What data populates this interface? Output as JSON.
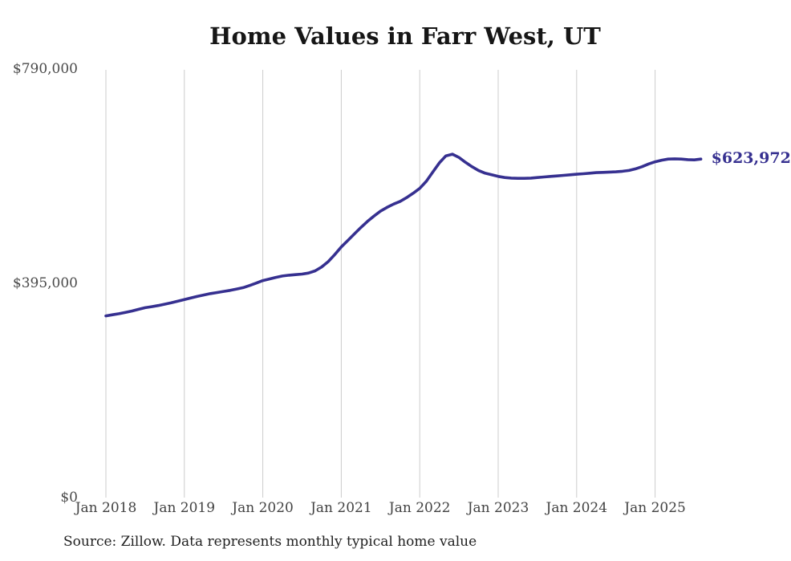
{
  "source": "Source: Zillow. Data represents monthly typical home value",
  "chart_data": {
    "type": "line",
    "title": "Home Values in Farr West, UT",
    "xlabel": "",
    "ylabel": "",
    "x_unit": "month",
    "x_first": "2018-01",
    "x_last": "2025-08",
    "x_tick_labels": [
      "Jan 2018",
      "Jan 2019",
      "Jan 2020",
      "Jan 2021",
      "Jan 2022",
      "Jan 2023",
      "Jan 2024",
      "Jan 2025"
    ],
    "y_ticks": [
      {
        "label": "$0",
        "value": 0
      },
      {
        "label": "$395,000",
        "value": 395000
      },
      {
        "label": "$790,000",
        "value": 790000
      }
    ],
    "ylim": [
      0,
      790000
    ],
    "grid": "vertical-only",
    "grid_color": "#cccccc",
    "legend": "none",
    "end_label": "$623,972",
    "series": [
      {
        "name": "Typical home value",
        "color": "#363090",
        "values": [
          335000,
          337000,
          339000,
          341500,
          344000,
          347000,
          350000,
          352000,
          354000,
          356500,
          359000,
          362000,
          365000,
          368000,
          371000,
          373500,
          376000,
          378000,
          380000,
          382000,
          384500,
          387000,
          391000,
          395500,
          400000,
          403000,
          406000,
          408500,
          410000,
          411000,
          412000,
          414000,
          418000,
          425000,
          435000,
          448000,
          462000,
          474000,
          486000,
          498000,
          509000,
          519000,
          528000,
          535000,
          541000,
          546000,
          553000,
          561000,
          570000,
          583000,
          600000,
          617000,
          630000,
          633000,
          627000,
          618000,
          610000,
          603000,
          598000,
          595000,
          592000,
          590000,
          589000,
          588500,
          588500,
          589000,
          590000,
          591000,
          592000,
          593000,
          594000,
          595000,
          596000,
          597000,
          598000,
          599000,
          599500,
          600000,
          600500,
          601500,
          603000,
          606000,
          610000,
          615000,
          619000,
          622000,
          624000,
          624500,
          624000,
          623000,
          622500,
          623972
        ]
      }
    ]
  }
}
